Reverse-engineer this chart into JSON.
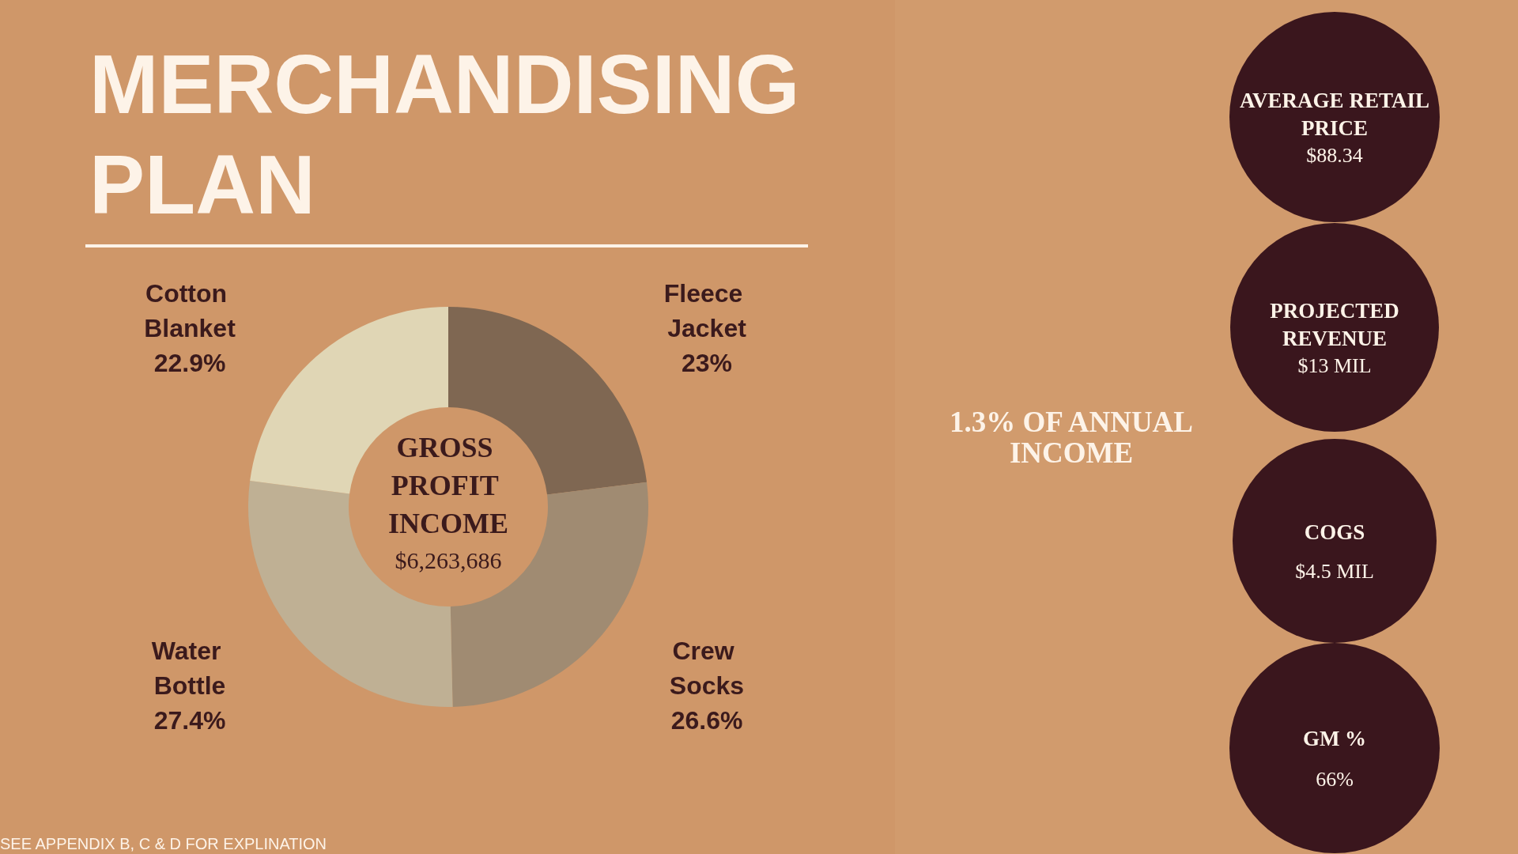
{
  "chart_data": [
    {
      "type": "donut",
      "title": "MERCHANDISING PLAN",
      "categories": [
        "Fleece Jacket",
        "Crew Socks",
        "Water Bottle",
        "Cotton Blanket"
      ],
      "values": [
        23,
        26.6,
        27.4,
        22.9
      ],
      "colors": [
        "#7f6752",
        "#a08b72",
        "#bfb094",
        "#e0d6b5"
      ],
      "value_labels": [
        "23%",
        "26.6%",
        "27.4%",
        "22.9%"
      ],
      "annotations": [
        "GROSS PROFIT INCOME",
        "$6,263,686",
        "SEE APPENDIX B, C & D FOR EXPLINATION"
      ]
    },
    {
      "type": "other",
      "title": "1.3% OF ANNUAL INCOME",
      "annotations": [
        "AVERAGE RETAIL PRICE",
        "$88.34",
        "PROJECTED REVENUE",
        "$13 MIL",
        "COGS",
        "$4.5 MIL",
        "GM %",
        "66%"
      ]
    }
  ]
}
